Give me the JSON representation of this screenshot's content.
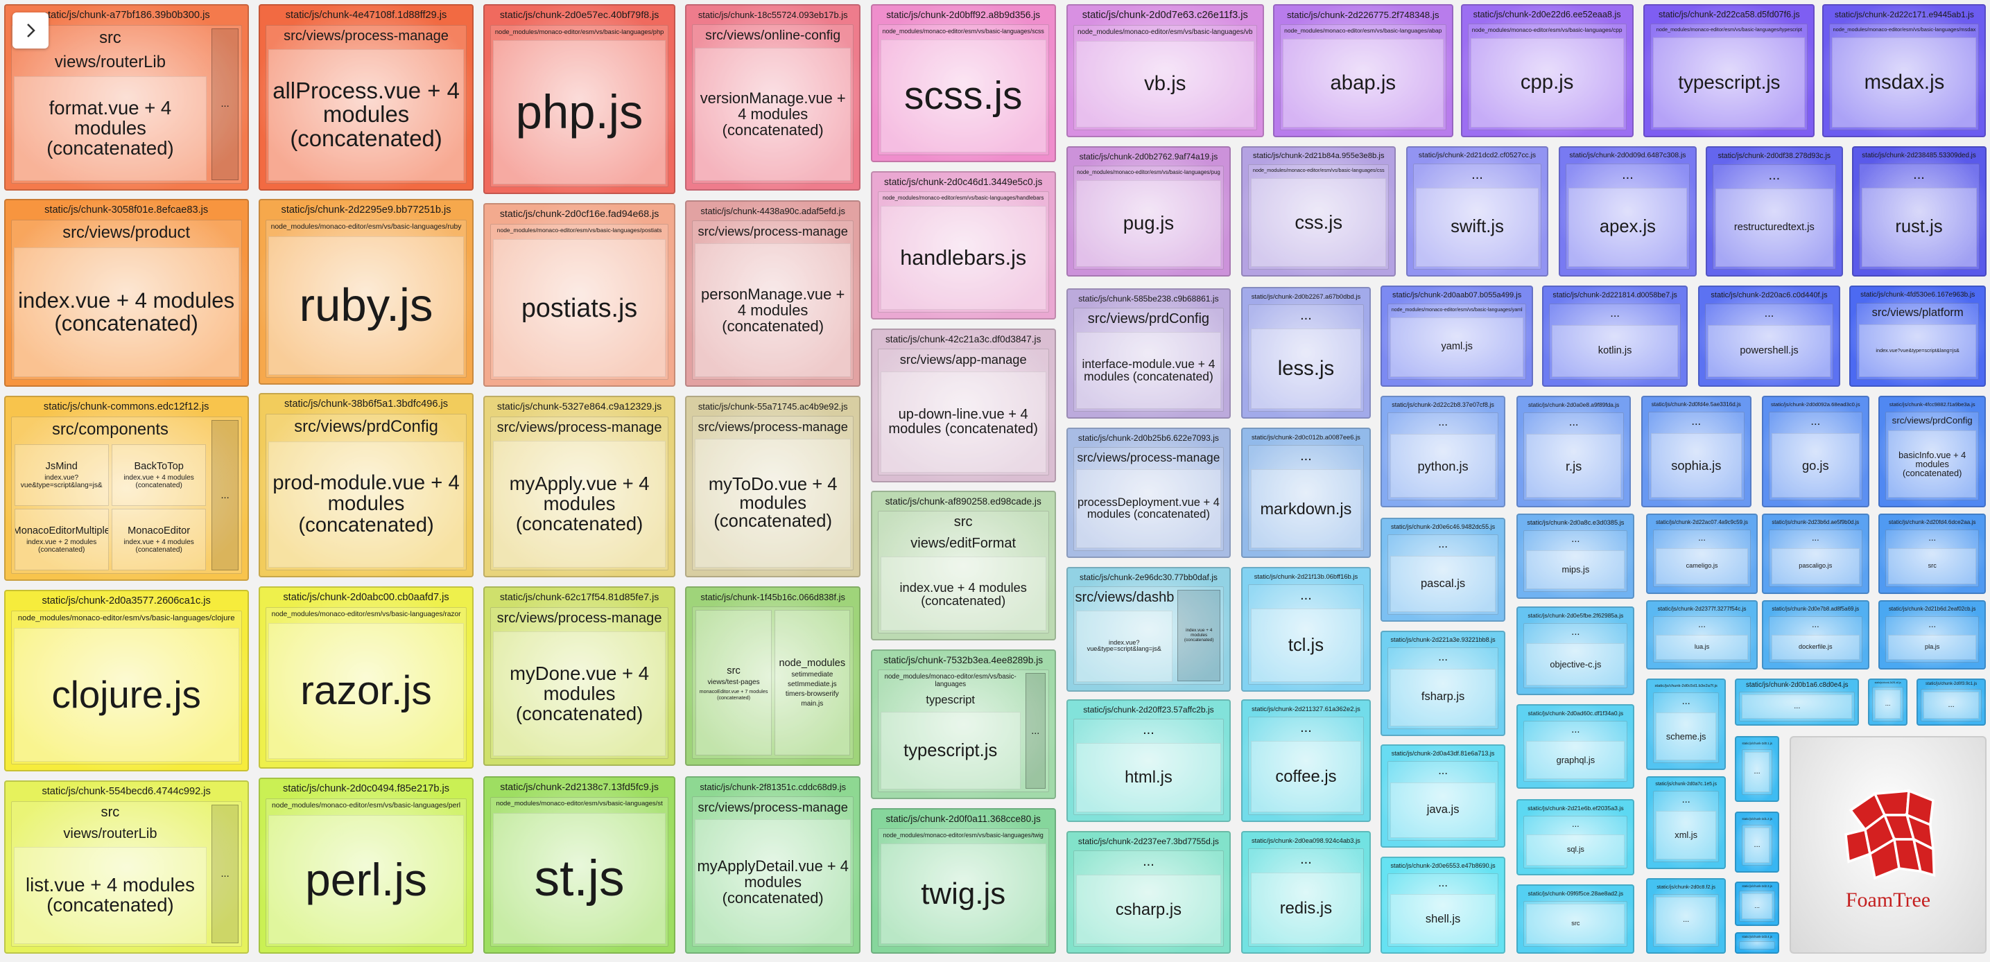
{
  "tiles": [
    {
      "title": "static/js/chunk-a77bf186.39b0b300.js",
      "labels": [
        "src",
        "views/routerLib",
        "format.vue + 4 modules (concatenated)"
      ],
      "side": "...",
      "color": "#f47a4c"
    },
    {
      "title": "static/js/chunk-3058f01e.8efcae83.js",
      "labels": [
        "src/views/product",
        "index.vue + 4 modules (concatenated)"
      ],
      "color": "#f7953f"
    },
    {
      "title": "static/js/chunk-commons.edc12f12.js",
      "labels": [
        "src/components"
      ],
      "items": [
        {
          "name": "JsMind",
          "lines": [
            "index.vue?vue&type=script&lang=js&"
          ]
        },
        {
          "name": "BackToTop",
          "lines": [
            "index.vue + 4 modules (concatenated)"
          ]
        },
        {
          "name": "MonacoEditorMultiple",
          "lines": [
            "index.vue + 2 modules (concatenated)"
          ]
        },
        {
          "name": "MonacoEditor",
          "lines": [
            "index.vue + 4 modules (concatenated)"
          ]
        }
      ],
      "side": "...",
      "color": "#f8c44c"
    },
    {
      "title": "static/js/chunk-2d0a3577.2606ca1c.js",
      "labels": [
        "node_modules/monaco-editor/esm/vs/basic-languages/clojure",
        "clojure.js"
      ],
      "color": "#f6ec3c"
    },
    {
      "title": "static/js/chunk-554becd6.4744c992.js",
      "labels": [
        "src",
        "views/routerLib",
        "list.vue + 4 modules (concatenated)"
      ],
      "side": "...",
      "color": "#e6f25c"
    },
    {
      "title": "static/js/chunk-4e47108f.1d88ff29.js",
      "labels": [
        "src/views/process-manage",
        "allProcess.vue + 4 modules (concatenated)"
      ],
      "color": "#f26a42"
    },
    {
      "title": "static/js/chunk-2d2295e9.bb77251b.js",
      "labels": [
        "node_modules/monaco-editor/esm/vs/basic-languages/ruby",
        "ruby.js"
      ],
      "color": "#f6a84c"
    },
    {
      "title": "static/js/chunk-38b6f5a1.3bdfc496.js",
      "labels": [
        "src/views/prdConfig",
        "prod-module.vue + 4 modules (concatenated)"
      ],
      "color": "#f2cc5c"
    },
    {
      "title": "static/js/chunk-2d0abc00.cb0aafd7.js",
      "labels": [
        "node_modules/monaco-editor/esm/vs/basic-languages/razor",
        "razor.js"
      ],
      "color": "#eef04c"
    },
    {
      "title": "static/js/chunk-2d0c0494.f85e217b.js",
      "labels": [
        "node_modules/monaco-editor/esm/vs/basic-languages/perl",
        "perl.js"
      ],
      "color": "#caf054"
    },
    {
      "title": "static/js/chunk-2d0e57ec.40bf79f8.js",
      "labels": [
        "node_modules/monaco-editor/esm/vs/basic-languages/php",
        "php.js"
      ],
      "color": "#f06a5e"
    },
    {
      "title": "static/js/chunk-2d0cf16e.fad94e68.js",
      "labels": [
        "node_modules/monaco-editor/esm/vs/basic-languages/postiats",
        "postiats.js"
      ],
      "color": "#f3aa8e"
    },
    {
      "title": "static/js/chunk-5327e864.c9a12329.js",
      "labels": [
        "src/views/process-manage",
        "myApply.vue + 4 modules (concatenated)"
      ],
      "color": "#e8d47c"
    },
    {
      "title": "static/js/chunk-62c17f54.81d85fe7.js",
      "labels": [
        "src/views/process-manage",
        "myDone.vue + 4 modules (concatenated)"
      ],
      "color": "#cfe06c"
    },
    {
      "title": "static/js/chunk-2d2138c7.13fd5fc9.js",
      "labels": [
        "node_modules/monaco-editor/esm/vs/basic-languages/st",
        "st.js"
      ],
      "color": "#9ede62"
    },
    {
      "title": "static/js/chunk-18c55724.093eb17b.js",
      "labels": [
        "src/views/online-config",
        "versionManage.vue + 4 modules (concatenated)"
      ],
      "color": "#ee7c8c"
    },
    {
      "title": "static/js/chunk-4438a90c.adaf5efd.js",
      "labels": [
        "src/views/process-manage",
        "personManage.vue + 4 modules (concatenated)"
      ],
      "color": "#e2a2a2"
    },
    {
      "title": "static/js/chunk-55a71745.ac4b9e92.js",
      "labels": [
        "src/views/process-manage",
        "myToDo.vue + 4 modules (concatenated)"
      ],
      "color": "#d8cea2"
    },
    {
      "title": "static/js/chunk-1f45b16c.066d838f.js",
      "labels": [],
      "items": [
        {
          "name": "src",
          "lines": [
            "views/test-pages",
            "monacoEditor.vue + 7 modules (concatenated)"
          ]
        },
        {
          "name": "node_modules",
          "lines": [
            "setimmediate",
            "setImmediate.js",
            "timers-browserify",
            "main.js"
          ]
        }
      ],
      "color": "#9fd47a"
    },
    {
      "title": "static/js/chunk-2f81351c.cddc68d9.js",
      "labels": [
        "src/views/process-manage",
        "myApplyDetail.vue + 4 modules (concatenated)"
      ],
      "color": "#8ed892"
    },
    {
      "title": "static/js/chunk-2d0bff92.a8b9d356.js",
      "labels": [
        "node_modules/monaco-editor/esm/vs/basic-languages/scss",
        "scss.js"
      ],
      "color": "#ef8ecc"
    },
    {
      "title": "static/js/chunk-2d0c46d1.3449e5c0.js",
      "labels": [
        "node_modules/monaco-editor/esm/vs/basic-languages/handlebars",
        "handlebars.js"
      ],
      "color": "#eaa8d2"
    },
    {
      "title": "static/js/chunk-42c21a3c.df0d3847.js",
      "labels": [
        "src/views/app-manage",
        "up-down-line.vue + 4 modules (concatenated)"
      ],
      "color": "#dabed2"
    },
    {
      "title": "static/js/chunk-af890258.ed98cade.js",
      "labels": [
        "src",
        "views/editFormat",
        "index.vue + 4 modules (concatenated)"
      ],
      "color": "#bcdab2"
    },
    {
      "title": "static/js/chunk-7532b3ea.4ee8289b.js",
      "labels": [
        "node_modules/monaco-editor/esm/vs/basic-languages",
        "typescript",
        "typescript.js"
      ],
      "side": "...",
      "color": "#a2daaa"
    },
    {
      "title": "static/js/chunk-2d0f0a11.368cce80.js",
      "labels": [
        "node_modules/monaco-editor/esm/vs/basic-languages/twig",
        "twig.js"
      ],
      "color": "#86d69c"
    },
    {
      "title": "static/js/chunk-2d0d7e63.c26e11f3.js",
      "labels": [
        "node_modules/monaco-editor/esm/vs/basic-languages/vb",
        "vb.js"
      ],
      "color": "#d890e2"
    },
    {
      "title": "static/js/chunk-2d226775.2f748348.js",
      "labels": [
        "node_modules/monaco-editor/esm/vs/basic-languages/abap",
        "abap.js"
      ],
      "color": "#b87cec"
    },
    {
      "title": "static/js/chunk-2d0e22d6.ee52eaa8.js",
      "labels": [
        "node_modules/monaco-editor/esm/vs/basic-languages/cpp",
        "cpp.js"
      ],
      "color": "#9c6ef2"
    },
    {
      "title": "static/js/chunk-2d22ca58.d5fd07f6.js",
      "labels": [
        "node_modules/monaco-editor/esm/vs/basic-languages/typescript",
        "typescript.js"
      ],
      "color": "#7e5ef2"
    },
    {
      "title": "static/js/chunk-2d22c171.e9445ab1.js",
      "labels": [
        "node_modules/monaco-editor/esm/vs/basic-languages/msdax",
        "msdax.js"
      ],
      "color": "#6c5cf0"
    },
    {
      "title": "static/js/chunk-2d0b2762.9af74a19.js",
      "labels": [
        "node_modules/monaco-editor/esm/vs/basic-languages/pug",
        "pug.js"
      ],
      "color": "#cc92da"
    },
    {
      "title": "static/js/chunk-2d21b84a.955e3e8b.js",
      "labels": [
        "node_modules/monaco-editor/esm/vs/basic-languages/css",
        "css.js"
      ],
      "color": "#b4a2e2"
    },
    {
      "title": "static/js/chunk-2d21dcd2.cf0527cc.js",
      "labels": [
        "...",
        "swift.js"
      ],
      "color": "#9294f2"
    },
    {
      "title": "static/js/chunk-2d0d09d.6487c308.js",
      "labels": [
        "...",
        "apex.js"
      ],
      "color": "#787af2"
    },
    {
      "title": "static/js/chunk-2d0df38.278d93c.js",
      "labels": [
        "...",
        "restructuredtext.js"
      ],
      "color": "#6466ee"
    },
    {
      "title": "static/js/chunk-2d238485.53309ded.js",
      "labels": [
        "...",
        "rust.js"
      ],
      "color": "#5a5aea"
    },
    {
      "title": "static/js/chunk-585be238.c9b68861.js",
      "labels": [
        "src/views/prdConfig",
        "interface-module.vue + 4 modules (concatenated)"
      ],
      "color": "#bcaadc"
    },
    {
      "title": "static/js/chunk-2d0b25b6.622e7093.js",
      "labels": [
        "src/views/process-manage",
        "processDeployment.vue + 4 modules (concatenated)"
      ],
      "color": "#a8bce4"
    },
    {
      "title": "static/js/chunk-2e96dc30.77bb0daf.js",
      "labels": [
        "src/views/dashboard",
        "index.vue?vue&type=script&lang=js&"
      ],
      "side": "index.vue + 4 modules (concatenated)",
      "color": "#92d2e4"
    },
    {
      "title": "static/js/chunk-2d20ff23.57affc2b.js",
      "labels": [
        "...",
        "html.js"
      ],
      "color": "#82e2da"
    },
    {
      "title": "static/js/chunk-2d237ee7.3bd7755d.js",
      "labels": [
        "...",
        "csharp.js"
      ],
      "color": "#82e2ca"
    },
    {
      "title": "static/js/chunk-2d0b2267.a67b0dbd.js",
      "labels": [
        "...",
        "less.js"
      ],
      "color": "#a2aaea"
    },
    {
      "title": "static/js/chunk-2d0c012b.a0087ee6.js",
      "labels": [
        "...",
        "markdown.js"
      ],
      "color": "#92baea"
    },
    {
      "title": "static/js/chunk-2d21f13b.06bff16b.js",
      "labels": [
        "...",
        "tcl.js"
      ],
      "color": "#82d2f2"
    },
    {
      "title": "static/js/chunk-2d211327.61a362e2.js",
      "labels": [
        "...",
        "coffee.js"
      ],
      "color": "#72dcea"
    },
    {
      "title": "static/js/chunk-2d0ea098.924c4ab3.js",
      "labels": [
        "...",
        "redis.js"
      ],
      "color": "#72e2e2"
    },
    {
      "title": "static/js/chunk-2d0aab07.b055a499.js",
      "labels": [
        "node_modules/monaco-editor/esm/vs/basic-languages/yaml",
        "yaml.js"
      ],
      "color": "#7c8af2"
    },
    {
      "title": "static/js/chunk-2d221814.d0058be7.js",
      "labels": [
        "...",
        "kotlin.js"
      ],
      "color": "#6c7cf2"
    },
    {
      "title": "static/js/chunk-2d20ac6.c0d440f.js",
      "labels": [
        "...",
        "powershell.js"
      ],
      "color": "#5c72f2"
    },
    {
      "title": "static/js/chunk-4fd530e6.167e963b.js",
      "labels": [
        "src/views/platform",
        "index.vue?vue&type=script&lang=js&"
      ],
      "color": "#4c6af2"
    },
    {
      "title": "static/js/chunk-2d22c2b8.37e07cf8.js",
      "labels": [
        "...",
        "python.js"
      ],
      "color": "#84aaf2"
    },
    {
      "title": "static/js/chunk-2d0a0e8.a9f89fda.js",
      "labels": [
        "...",
        "r.js"
      ],
      "color": "#76a0f2"
    },
    {
      "title": "static/js/chunk-2d0fd4e.5ae3316d.js",
      "labels": [
        "...",
        "sophia.js"
      ],
      "color": "#6898f2"
    },
    {
      "title": "static/js/chunk-2d0d092a.68ead3c0.js",
      "labels": [
        "...",
        "go.js"
      ],
      "color": "#5c90f2"
    },
    {
      "title": "static/js/chunk-4fcc9882.f1a9be3a.js",
      "labels": [
        "src/views/prdConfig",
        "basicInfo.vue + 4 modules (concatenated)"
      ],
      "color": "#5088f2"
    },
    {
      "title": "static/js/chunk-2d0e6c46.9482dc55.js",
      "labels": [
        "...",
        "pascal.js"
      ],
      "color": "#7cc0f2"
    },
    {
      "title": "static/js/chunk-2d0a8c.e3d0385.js",
      "labels": [
        "...",
        "mips.js"
      ],
      "color": "#70b2f2"
    },
    {
      "title": "static/js/chunk-2d22ac07.4a9c9c59.js",
      "labels": [
        "...",
        "cameligo.js"
      ],
      "color": "#62a8f2"
    },
    {
      "title": "static/js/chunk-2d23b6d.ae5f9b0d.js",
      "labels": [
        "...",
        "pascaligo.js"
      ],
      "color": "#5aa2f2"
    },
    {
      "title": "static/js/chunk-2d20fd4.6dce2aa.js",
      "labels": [
        "...",
        "src"
      ],
      "color": "#509af2"
    },
    {
      "title": "static/js/chunk-2d221a3e.93221bb8.js",
      "labels": [
        "...",
        "fsharp.js"
      ],
      "color": "#70d0f2"
    },
    {
      "title": "static/js/chunk-2d0e5fbe.2f62985a.js",
      "labels": [
        "...",
        "objective-c.js"
      ],
      "color": "#66c4f2"
    },
    {
      "title": "static/js/chunk-2d2377f.3277f54c.js",
      "labels": [
        "...",
        "lua.js"
      ],
      "color": "#5ab8f2"
    },
    {
      "title": "static/js/chunk-2d0e7b8.ad8f5a69.js",
      "labels": [
        "...",
        "dockerfile.js"
      ],
      "color": "#52b0f2"
    },
    {
      "title": "static/js/chunk-2d21b6d.2eaf02cb.js",
      "labels": [
        "...",
        "pla.js"
      ],
      "color": "#4aa8f2"
    },
    {
      "title": "static/js/chunk-2d0a43df.81e6a713.js",
      "labels": [
        "...",
        "java.js"
      ],
      "color": "#68dcf2"
    },
    {
      "title": "static/js/chunk-2d0ad60c.df1f34a0.js",
      "labels": [
        "...",
        "graphql.js"
      ],
      "color": "#5ed2f2"
    },
    {
      "title": "static/js/chunk-2d0c5d1.b3e2a7f.js",
      "labels": [
        "...",
        "scheme.js"
      ],
      "color": "#52c4f2"
    },
    {
      "title": "static/js/chunk-2d0b1a6.c8d0e4.js",
      "labels": [
        "..."
      ],
      "color": "#4cc0f2"
    },
    {
      "title": "static/js/chunk-2d2f1.a0.js",
      "labels": [
        "..."
      ],
      "color": "#46baf2"
    },
    {
      "title": "static/js/chunk-2d0f3.9c1.js",
      "labels": [
        "..."
      ],
      "color": "#40b4f2"
    },
    {
      "title": "static/js/chunk-2d0e6553.e47b8690.js",
      "labels": [
        "...",
        "shell.js"
      ],
      "color": "#66e2f2"
    },
    {
      "title": "static/js/chunk-2d21e6b.ef2035a3.js",
      "labels": [
        "...",
        "sql.js"
      ],
      "color": "#5cd8f2"
    },
    {
      "title": "static/js/chunk-09f6f5ce.28ae8ad2.js",
      "labels": [
        "src"
      ],
      "color": "#54d0f2"
    },
    {
      "title": "static/js/chunk-2d0a7c.1e5.js",
      "labels": [
        "...",
        "xml.js"
      ],
      "color": "#4cc8f2"
    },
    {
      "title": "static/js/chunk-2d0c8.f2.js",
      "labels": [
        "..."
      ],
      "color": "#44c2f2"
    },
    {
      "title": "static/js/chunk-2d0.1.js",
      "labels": [
        "..."
      ],
      "color": "#3ebcf2"
    },
    {
      "title": "static/js/chunk-2d1.2.js",
      "labels": [
        "..."
      ],
      "color": "#38b6f2"
    },
    {
      "title": "static/js/chunk-2d2.3.js",
      "labels": [
        "..."
      ],
      "color": "#32b2f2"
    },
    {
      "title": "static/js/chunk-2d3.4.js",
      "labels": [],
      "color": "#2cb0f2"
    }
  ],
  "logo": "FoamTree"
}
